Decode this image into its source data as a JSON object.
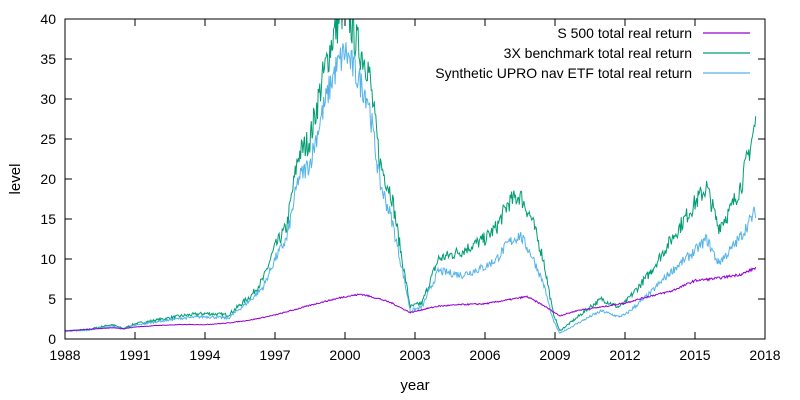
{
  "chart_data": {
    "type": "line",
    "xlabel": "year",
    "ylabel": "level",
    "xlim": [
      1988,
      2018
    ],
    "ylim": [
      0,
      40
    ],
    "x_ticks": [
      1988,
      1991,
      1994,
      1997,
      2000,
      2003,
      2006,
      2009,
      2012,
      2015,
      2018
    ],
    "y_ticks": [
      0,
      5,
      10,
      15,
      20,
      25,
      30,
      35,
      40
    ],
    "grid": false,
    "legend": "top-right",
    "series": [
      {
        "name": "S    500 total real return",
        "color": "#9400d3",
        "x": [
          1988.0,
          1989.0,
          1990.0,
          1990.5,
          1991.0,
          1992.0,
          1993.0,
          1994.0,
          1995.0,
          1996.0,
          1997.0,
          1998.0,
          1999.0,
          2000.0,
          2000.7,
          2001.5,
          2002.0,
          2002.8,
          2003.5,
          2004.0,
          2005.0,
          2006.0,
          2007.0,
          2007.8,
          2008.5,
          2009.2,
          2010.0,
          2011.0,
          2012.0,
          2013.0,
          2014.0,
          2015.0,
          2016.0,
          2017.0,
          2017.6
        ],
        "y": [
          1.0,
          1.2,
          1.4,
          1.3,
          1.5,
          1.7,
          1.8,
          1.8,
          2.0,
          2.4,
          3.0,
          3.8,
          4.6,
          5.3,
          5.6,
          5.0,
          4.5,
          3.3,
          3.8,
          4.1,
          4.3,
          4.4,
          4.9,
          5.3,
          4.2,
          2.9,
          3.6,
          4.0,
          4.5,
          5.3,
          6.0,
          7.3,
          7.6,
          8.1,
          8.9
        ]
      },
      {
        "name": "3X benchmark total real return",
        "color": "#009e73",
        "x": [
          1988.0,
          1989.0,
          1990.0,
          1990.5,
          1991.0,
          1992.0,
          1993.0,
          1994.0,
          1995.0,
          1996.0,
          1996.5,
          1997.0,
          1997.5,
          1998.0,
          1998.5,
          1999.0,
          1999.5,
          2000.0,
          2000.5,
          2001.0,
          2001.5,
          2002.0,
          2002.5,
          2002.8,
          2003.3,
          2004.0,
          2005.0,
          2006.0,
          2006.5,
          2007.0,
          2007.5,
          2008.0,
          2008.5,
          2008.9,
          2009.2,
          2010.0,
          2010.5,
          2011.0,
          2011.7,
          2012.0,
          2013.0,
          2014.0,
          2015.0,
          2015.5,
          2016.0,
          2016.5,
          2017.0,
          2017.6
        ],
        "y": [
          1.0,
          1.2,
          1.8,
          1.3,
          1.9,
          2.4,
          2.9,
          3.2,
          3.0,
          5.5,
          7.5,
          11.5,
          14.0,
          23.0,
          25.0,
          32.0,
          38.0,
          42.0,
          37.0,
          34.0,
          22.0,
          18.0,
          9.0,
          4.0,
          4.5,
          10.0,
          11.0,
          12.5,
          14.0,
          17.0,
          18.0,
          15.0,
          10.0,
          3.5,
          1.0,
          2.8,
          4.0,
          5.0,
          4.0,
          4.5,
          8.0,
          12.5,
          17.0,
          19.0,
          14.0,
          16.0,
          19.5,
          27.0
        ]
      },
      {
        "name": "Synthetic UPRO nav ETF total real return",
        "color": "#56b4e9",
        "x": [
          1988.0,
          1989.0,
          1990.0,
          1990.5,
          1991.0,
          1992.0,
          1993.0,
          1994.0,
          1995.0,
          1996.0,
          1996.5,
          1997.0,
          1997.5,
          1998.0,
          1998.5,
          1999.0,
          1999.5,
          2000.0,
          2000.5,
          2001.0,
          2001.5,
          2002.0,
          2002.5,
          2002.8,
          2003.3,
          2004.0,
          2005.0,
          2006.0,
          2006.5,
          2007.0,
          2007.5,
          2008.0,
          2008.5,
          2008.9,
          2009.2,
          2010.0,
          2010.5,
          2011.0,
          2011.7,
          2012.0,
          2013.0,
          2014.0,
          2015.0,
          2015.5,
          2016.0,
          2016.5,
          2017.0,
          2017.6
        ],
        "y": [
          1.0,
          1.1,
          1.6,
          1.2,
          1.7,
          2.2,
          2.6,
          2.8,
          2.6,
          5.0,
          6.5,
          10.0,
          12.5,
          20.0,
          22.0,
          28.0,
          33.0,
          36.0,
          33.0,
          30.0,
          19.5,
          15.0,
          8.0,
          3.5,
          4.0,
          8.5,
          8.0,
          9.0,
          10.0,
          12.0,
          13.0,
          10.5,
          7.0,
          2.5,
          0.7,
          2.0,
          2.8,
          3.5,
          2.8,
          3.0,
          5.5,
          8.5,
          11.0,
          12.5,
          9.5,
          11.0,
          13.0,
          16.0
        ]
      }
    ]
  }
}
